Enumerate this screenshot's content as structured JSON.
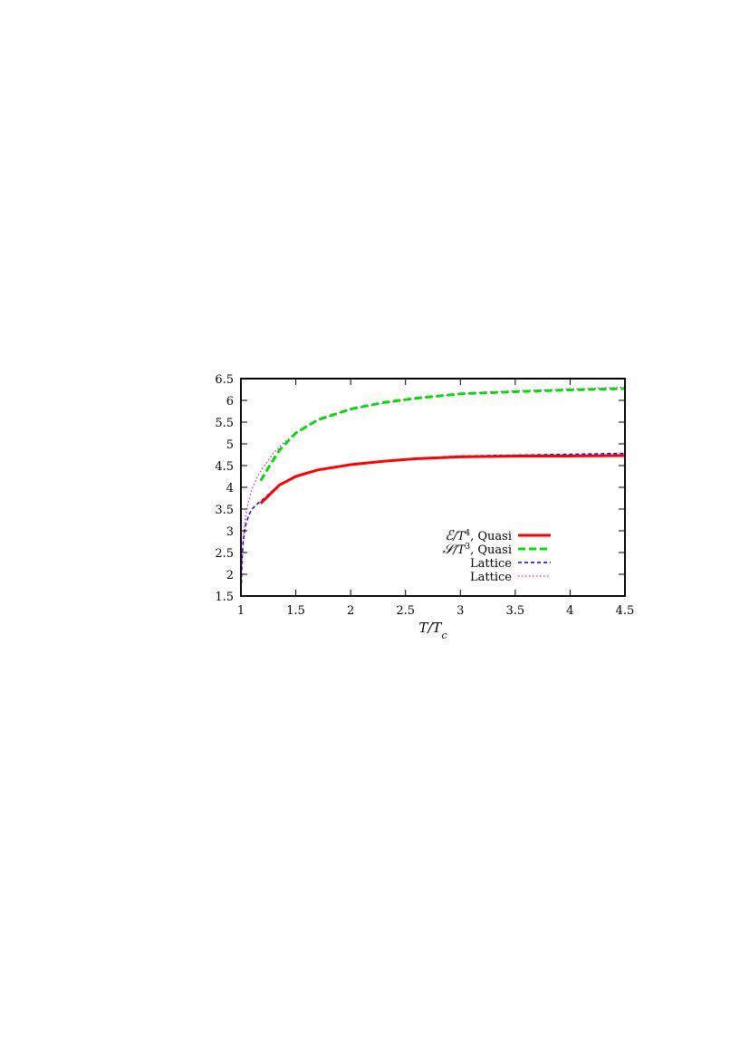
{
  "chart_data": {
    "type": "line",
    "xlabel": "T/T_c",
    "xlabel_parts": {
      "main": "T/T",
      "sub": "c"
    },
    "ylabel": "",
    "xlim": [
      1,
      4.5
    ],
    "ylim": [
      1.5,
      6.5
    ],
    "xticks": [
      1,
      1.5,
      2,
      2.5,
      3,
      3.5,
      4,
      4.5
    ],
    "xtick_labels": [
      "1",
      "1.5",
      "2",
      "2.5",
      "3",
      "3.5",
      "4",
      "4.5"
    ],
    "yticks": [
      1.5,
      2,
      2.5,
      3,
      3.5,
      4,
      4.5,
      5,
      5.5,
      6,
      6.5
    ],
    "ytick_labels": [
      "1.5",
      "2",
      "2.5",
      "3",
      "3.5",
      "4",
      "4.5",
      "5",
      "5.5",
      "6",
      "6.5"
    ],
    "grid": false,
    "legend_position": "bottom-right",
    "series": [
      {
        "name": "E/T^4, Quasi",
        "legend": {
          "symbol": "ℰ",
          "mid": "/T",
          "sup": "4",
          "tail": ", Quasi"
        },
        "color": "#ff0000",
        "style": "solid",
        "x": [
          1.18,
          1.25,
          1.35,
          1.5,
          1.7,
          2.0,
          2.3,
          2.6,
          3.0,
          3.5,
          4.0,
          4.5
        ],
        "y": [
          3.63,
          3.8,
          4.05,
          4.25,
          4.4,
          4.52,
          4.6,
          4.66,
          4.7,
          4.72,
          4.72,
          4.73
        ]
      },
      {
        "name": "S/T^3, Quasi",
        "legend": {
          "symbol": "𝒮",
          "mid": "/T",
          "sup": "3",
          "tail": ", Quasi"
        },
        "color": "#00dd00",
        "style": "dashed",
        "x": [
          1.18,
          1.25,
          1.35,
          1.5,
          1.7,
          2.0,
          2.3,
          2.6,
          3.0,
          3.5,
          4.0,
          4.5
        ],
        "y": [
          4.15,
          4.45,
          4.85,
          5.25,
          5.55,
          5.8,
          5.95,
          6.05,
          6.15,
          6.2,
          6.24,
          6.27
        ]
      },
      {
        "name": "Lattice",
        "legend": {
          "symbol": "",
          "mid": "",
          "sup": "",
          "tail": "Lattice"
        },
        "color": "#0000ff",
        "style": "short-dash",
        "x": [
          1.0,
          1.005,
          1.01,
          1.02,
          1.04,
          1.07,
          1.1,
          1.15,
          1.2,
          1.3,
          1.4,
          1.5,
          1.7,
          2.0,
          2.5,
          3.0,
          3.5,
          4.0,
          4.5
        ],
        "y": [
          1.5,
          1.85,
          2.3,
          2.75,
          3.1,
          3.35,
          3.5,
          3.62,
          3.72,
          3.95,
          4.12,
          4.25,
          4.4,
          4.52,
          4.65,
          4.72,
          4.74,
          4.76,
          4.78
        ]
      },
      {
        "name": "Lattice",
        "legend": {
          "symbol": "",
          "mid": "",
          "sup": "",
          "tail": "Lattice"
        },
        "color": "#ff00ff",
        "style": "dotted",
        "x": [
          1.0,
          1.005,
          1.01,
          1.02,
          1.04,
          1.07,
          1.1,
          1.15,
          1.2,
          1.3,
          1.4,
          1.5,
          1.7,
          2.0,
          2.5,
          3.0,
          3.5,
          4.0,
          4.5
        ],
        "y": [
          1.5,
          1.9,
          2.3,
          2.8,
          3.3,
          3.7,
          3.95,
          4.25,
          4.45,
          4.8,
          5.05,
          5.25,
          5.55,
          5.8,
          6.02,
          6.15,
          6.22,
          6.26,
          6.3
        ]
      }
    ]
  }
}
